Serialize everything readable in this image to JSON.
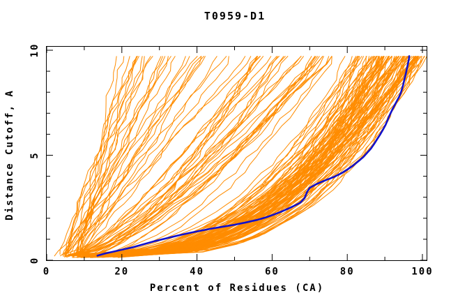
{
  "page": {
    "background": "#ffffff"
  },
  "chart_data": {
    "type": "line",
    "title": "T0959-D1",
    "xlabel": "Percent of Residues (CA)",
    "ylabel": "Distance Cutoff, A",
    "xlim": [
      0,
      100
    ],
    "ylim": [
      0,
      10
    ],
    "x_major_ticks": [
      0,
      20,
      40,
      60,
      80,
      100
    ],
    "x_minor_ticks": [
      10,
      30,
      50,
      70,
      90
    ],
    "y_major_ticks": [
      0,
      5,
      10
    ],
    "y_minor_ticks": [
      1,
      2,
      3,
      4,
      6,
      7,
      8,
      9
    ],
    "grid": false,
    "legend": "none",
    "frame": true,
    "colors": {
      "ensemble": "#ff8c00",
      "highlight": "#1111cc",
      "axis": "#000000",
      "text": "#000000",
      "background": "#ffffff"
    },
    "highlight_series": {
      "name": "highlighted model curve (blue)",
      "color": "#1111cc",
      "stroke_width": 2.6,
      "points": [
        [
          13.5,
          0.22
        ],
        [
          15.5,
          0.32
        ],
        [
          18,
          0.42
        ],
        [
          20,
          0.5
        ],
        [
          23,
          0.62
        ],
        [
          26,
          0.77
        ],
        [
          29,
          0.92
        ],
        [
          32,
          1.05
        ],
        [
          35,
          1.18
        ],
        [
          38,
          1.3
        ],
        [
          41,
          1.41
        ],
        [
          44,
          1.51
        ],
        [
          47,
          1.6
        ],
        [
          50,
          1.69
        ],
        [
          53,
          1.8
        ],
        [
          56,
          1.92
        ],
        [
          58.5,
          2.05
        ],
        [
          60.5,
          2.18
        ],
        [
          62.5,
          2.32
        ],
        [
          64.5,
          2.48
        ],
        [
          66,
          2.6
        ],
        [
          67.5,
          2.74
        ],
        [
          68.6,
          2.95
        ],
        [
          69.3,
          3.25
        ],
        [
          70,
          3.45
        ],
        [
          71.5,
          3.6
        ],
        [
          73,
          3.72
        ],
        [
          74.5,
          3.83
        ],
        [
          76.5,
          3.97
        ],
        [
          78.5,
          4.15
        ],
        [
          80,
          4.32
        ],
        [
          81.5,
          4.5
        ],
        [
          83,
          4.72
        ],
        [
          84.3,
          4.92
        ],
        [
          85.3,
          5.12
        ],
        [
          86.3,
          5.32
        ],
        [
          87.2,
          5.55
        ],
        [
          88,
          5.78
        ],
        [
          88.8,
          6.0
        ],
        [
          89.5,
          6.22
        ],
        [
          90.2,
          6.45
        ],
        [
          90.8,
          6.7
        ],
        [
          91.4,
          6.95
        ],
        [
          92,
          7.18
        ],
        [
          92.6,
          7.38
        ],
        [
          93.2,
          7.58
        ],
        [
          93.8,
          7.78
        ],
        [
          94.3,
          8.0
        ],
        [
          94.8,
          8.3
        ],
        [
          95.2,
          8.6
        ],
        [
          95.6,
          8.9
        ],
        [
          95.9,
          9.15
        ],
        [
          96.2,
          9.4
        ],
        [
          96.4,
          9.58
        ],
        [
          96.5,
          9.72
        ]
      ]
    },
    "ensemble_series": {
      "name": "model ensemble curves (orange)",
      "color": "#ff8c00",
      "stroke_width": 1,
      "count": 155,
      "seed": 959,
      "y_start_range": [
        0.12,
        0.3
      ],
      "y_end": 9.72,
      "y_step": 0.37,
      "wiggle": 1.5,
      "start_x_by_class": {
        "poor": [
          2,
          9
        ],
        "mid": [
          4,
          13
        ],
        "good": [
          6,
          19
        ]
      },
      "classes": [
        {
          "name": "poor",
          "frac": 0.21,
          "top_x": [
            17,
            55
          ],
          "shape_p": [
            0.85,
            1.25
          ],
          "top_x_bias": 1.0
        },
        {
          "name": "mid",
          "frac": 0.16,
          "top_x": [
            55,
            78
          ],
          "shape_p": [
            0.5,
            0.85
          ],
          "top_x_bias": 1.0
        },
        {
          "name": "good",
          "frac": 0.63,
          "top_x": [
            78,
            100.5
          ],
          "shape_p": [
            0.28,
            0.5
          ],
          "top_x_bias": 0.5
        }
      ]
    }
  }
}
